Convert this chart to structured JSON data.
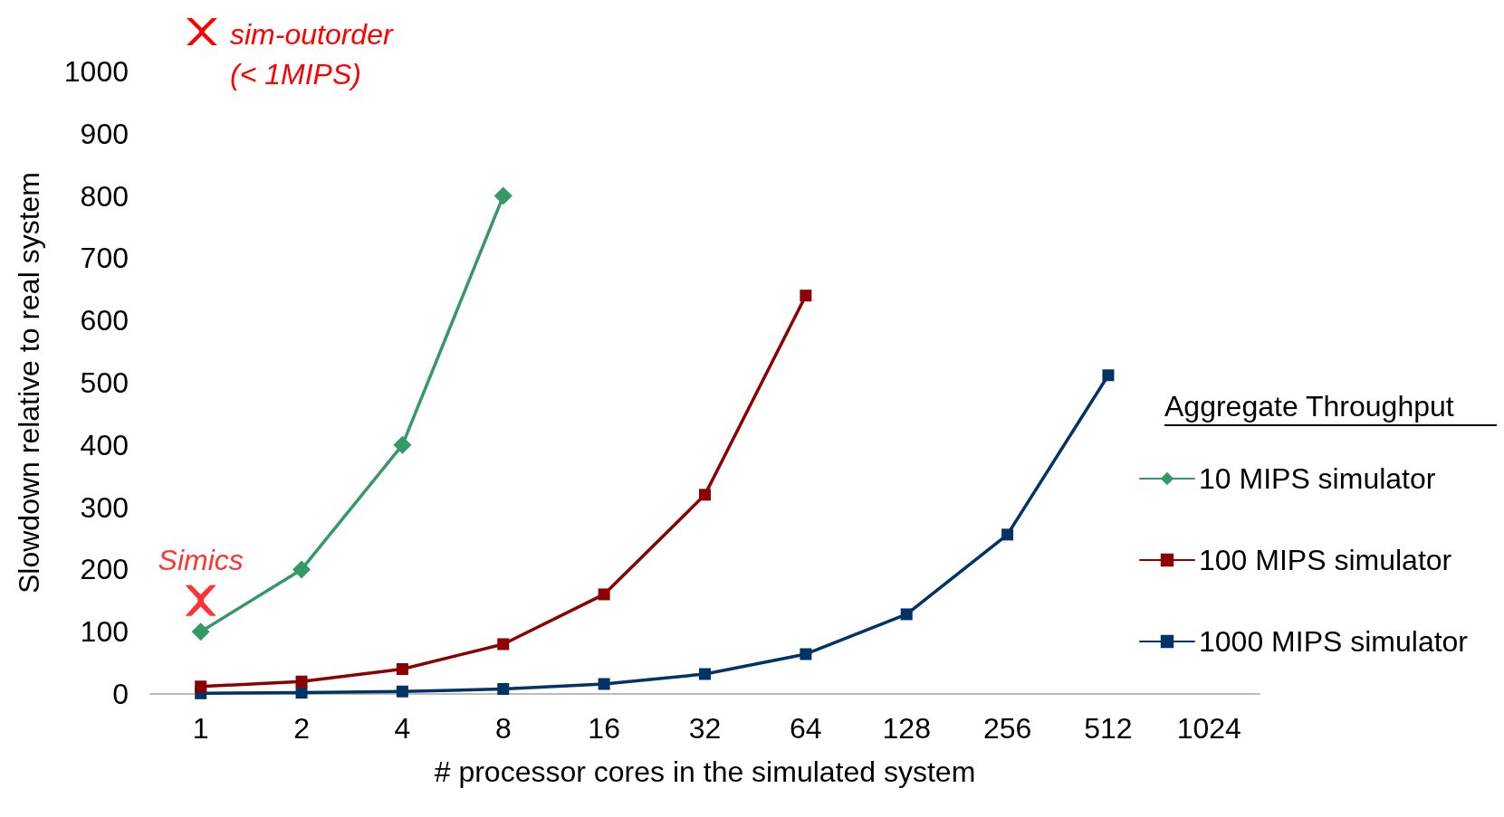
{
  "chart_data": {
    "type": "line",
    "xlabel": "# processor cores in the simulated system",
    "ylabel": "Slowdown relative to real system",
    "legend_title": "Aggregate Throughput",
    "categories": [
      "1",
      "2",
      "4",
      "8",
      "16",
      "32",
      "64",
      "128",
      "256",
      "512",
      "1024"
    ],
    "series": [
      {
        "name": "10 MIPS simulator",
        "color": "#339966",
        "marker": "diamond",
        "values": [
          100,
          200,
          400,
          800,
          null,
          null,
          null,
          null,
          null,
          null,
          null
        ]
      },
      {
        "name": "100 MIPS simulator",
        "color": "#8b0000",
        "marker": "square",
        "values": [
          12,
          20,
          40,
          80,
          160,
          320,
          640,
          null,
          null,
          null,
          null
        ]
      },
      {
        "name": "1000 MIPS simulator",
        "color": "#003366",
        "marker": "square",
        "values": [
          1,
          2,
          4,
          8,
          16,
          32,
          64,
          128,
          256,
          512,
          null
        ]
      },
      {
        "name": "Simics",
        "type": "scatter",
        "color": "#ff0000",
        "marker": "cross",
        "x": [
          "1"
        ],
        "values": [
          150
        ]
      }
    ],
    "ylim": [
      0,
      1000
    ],
    "yticks": [
      0,
      100,
      200,
      300,
      400,
      500,
      600,
      700,
      800,
      900,
      1000
    ],
    "grid": false,
    "legend": "right",
    "line_style": "solid",
    "annotations": [
      "sim-outorder\n(< 1MIPS)"
    ]
  }
}
